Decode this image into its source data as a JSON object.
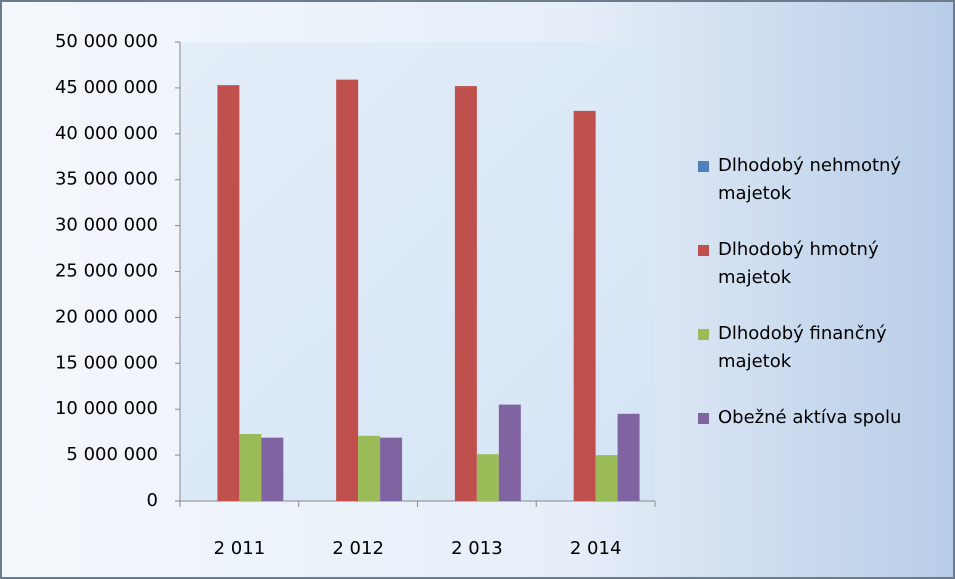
{
  "chart_data": {
    "type": "bar",
    "categories": [
      "2 011",
      "2 012",
      "2 013",
      "2 014"
    ],
    "series": [
      {
        "name": "Dlhodobý nehmotný majetok",
        "color": "#4f81bd",
        "values": [
          0,
          0,
          0,
          0
        ]
      },
      {
        "name": "Dlhodobý hmotný majetok",
        "color": "#c0504d",
        "values": [
          45300000,
          45900000,
          45200000,
          42500000
        ]
      },
      {
        "name": "Dlhodobý finančný majetok",
        "color": "#9bbb59",
        "values": [
          7300000,
          7100000,
          5100000,
          5000000
        ]
      },
      {
        "name": "Obežné aktíva spolu",
        "color": "#8064a2",
        "values": [
          6900000,
          6900000,
          10500000,
          9500000
        ]
      }
    ],
    "ylim": [
      0,
      50000000
    ],
    "yticks": [
      0,
      {
        "value": 5000000,
        "label": "5 000 000"
      },
      {
        "value": 10000000,
        "label": "10 000 000"
      },
      {
        "value": 15000000,
        "label": "15 000 000"
      },
      {
        "value": 20000000,
        "label": "20 000 000"
      },
      {
        "value": 25000000,
        "label": "25 000 000"
      },
      {
        "value": 30000000,
        "label": "30 000 000"
      },
      {
        "value": 35000000,
        "label": "35 000 000"
      },
      {
        "value": 40000000,
        "label": "40 000 000"
      },
      {
        "value": 45000000,
        "label": "45 000 000"
      },
      {
        "value": 50000000,
        "label": "50 000 000"
      }
    ],
    "legend": "right"
  }
}
